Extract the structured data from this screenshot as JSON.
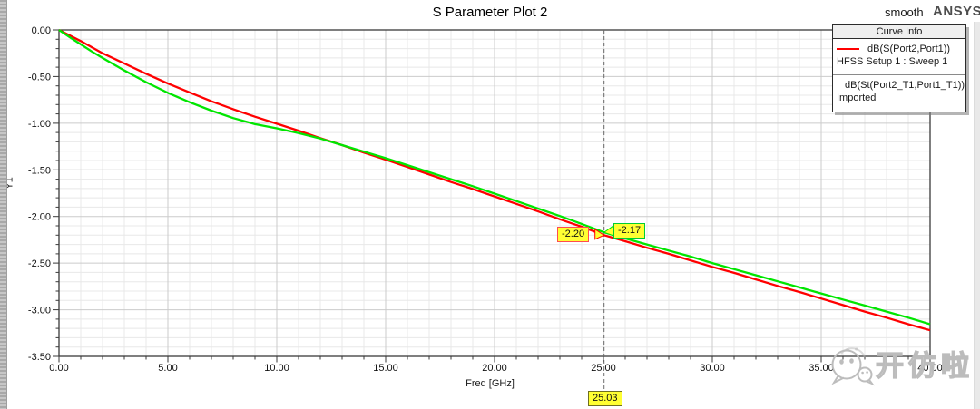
{
  "header": {
    "smooth_label": "smooth",
    "brand": "ANSYS"
  },
  "legend": {
    "title": "Curve Info"
  },
  "watermark": {
    "text": "开仿啦"
  },
  "chart_data": {
    "type": "line",
    "title": "S Parameter Plot 2",
    "xlabel": "Freq [GHz]",
    "ylabel": "Y1",
    "xlim": [
      0,
      40
    ],
    "ylim": [
      -3.5,
      0
    ],
    "grid": true,
    "legend_position": "top-right",
    "x_major_ticks": [
      0,
      5,
      10,
      15,
      20,
      25,
      30,
      35,
      40
    ],
    "x_tick_labels": [
      "0.00",
      "5.00",
      "10.00",
      "15.00",
      "20.00",
      "25.00",
      "30.00",
      "35.00",
      "40.00"
    ],
    "y_major_ticks": [
      0,
      -0.5,
      -1,
      -1.5,
      -2,
      -2.5,
      -3,
      -3.5
    ],
    "y_tick_labels": [
      "0.00",
      "-0.50",
      "-1.00",
      "-1.50",
      "-2.00",
      "-2.50",
      "-3.00",
      "-3.50"
    ],
    "x_minor_step": 1,
    "y_minor_step": 0.1,
    "series": [
      {
        "name": "dB(S(Port2,Port1))",
        "source": "HFSS Setup 1 : Sweep 1",
        "color": "#ff0000",
        "x": [
          0,
          0.5,
          1,
          1.5,
          2,
          3,
          4,
          5,
          6,
          7,
          8,
          9,
          10,
          11,
          12,
          13,
          14,
          15,
          16,
          17,
          18,
          19,
          20,
          21,
          22,
          23,
          24,
          25.03,
          26,
          27,
          28,
          29,
          30,
          31,
          32,
          33,
          34,
          35,
          36,
          37,
          38,
          39,
          40
        ],
        "y": [
          0,
          -0.06,
          -0.12,
          -0.185,
          -0.25,
          -0.36,
          -0.47,
          -0.575,
          -0.67,
          -0.765,
          -0.85,
          -0.93,
          -1.005,
          -1.08,
          -1.16,
          -1.235,
          -1.315,
          -1.39,
          -1.47,
          -1.55,
          -1.63,
          -1.705,
          -1.785,
          -1.865,
          -1.945,
          -2.03,
          -2.11,
          -2.2,
          -2.265,
          -2.335,
          -2.4,
          -2.47,
          -2.54,
          -2.605,
          -2.675,
          -2.745,
          -2.81,
          -2.88,
          -2.95,
          -3.02,
          -3.085,
          -3.155,
          -3.22
        ]
      },
      {
        "name": "dB(St(Port2_T1,Port1_T1))",
        "source": "Imported",
        "color": "#00e600",
        "x": [
          0,
          0.5,
          1,
          1.5,
          2,
          3,
          4,
          5,
          6,
          7,
          8,
          9,
          10,
          11,
          12,
          13,
          14,
          15,
          16,
          17,
          18,
          19,
          20,
          21,
          22,
          23,
          24,
          25.03,
          26,
          27,
          28,
          29,
          30,
          31,
          32,
          33,
          34,
          35,
          36,
          37,
          38,
          39,
          40
        ],
        "y": [
          0,
          -0.08,
          -0.155,
          -0.23,
          -0.3,
          -0.435,
          -0.56,
          -0.675,
          -0.775,
          -0.865,
          -0.945,
          -1.01,
          -1.055,
          -1.105,
          -1.165,
          -1.235,
          -1.305,
          -1.375,
          -1.45,
          -1.525,
          -1.6,
          -1.675,
          -1.755,
          -1.835,
          -1.915,
          -1.995,
          -2.08,
          -2.17,
          -2.235,
          -2.3,
          -2.365,
          -2.43,
          -2.5,
          -2.565,
          -2.63,
          -2.695,
          -2.76,
          -2.825,
          -2.89,
          -2.955,
          -3.02,
          -3.085,
          -3.155
        ]
      }
    ],
    "markers": [
      {
        "id": "m1",
        "label": "-2.20",
        "x": 25.03,
        "y": -2.2,
        "series": 0,
        "side": "left"
      },
      {
        "id": "m2",
        "label": "-2.17",
        "x": 25.03,
        "y": -2.17,
        "series": 1,
        "side": "right"
      },
      {
        "id": "x1",
        "label": "25.03",
        "x": 25.03,
        "axis": "x"
      }
    ]
  }
}
